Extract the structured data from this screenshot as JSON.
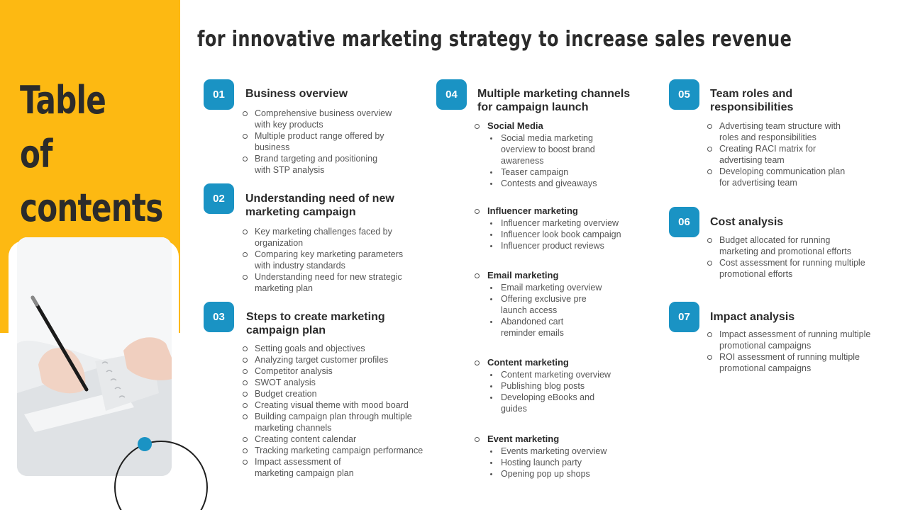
{
  "left_panel": {
    "title_line1": "Table of",
    "title_line2": "contents"
  },
  "main_title": "for innovative marketing strategy to increase sales revenue",
  "sections": {
    "s1": {
      "number": "01",
      "title": "Business overview",
      "items": [
        [
          "Comprehensive  business overview",
          "with key products"
        ],
        [
          "Multiple product range offered  by",
          "business"
        ],
        [
          "Brand targeting and positioning",
          "with STP analysis"
        ]
      ]
    },
    "s2": {
      "number": "02",
      "title_line1": "Understanding need of new",
      "title_line2": "marketing campaign",
      "items": [
        [
          "Key marketing challenges faced by",
          "organization"
        ],
        [
          "Comparing  key marketing parameters",
          "with industry standards"
        ],
        [
          "Understanding  need for new strategic",
          "marketing plan"
        ]
      ]
    },
    "s3": {
      "number": "03",
      "title_line1": "Steps to create marketing",
      "title_line2": "campaign plan",
      "items": [
        [
          "Setting goals and objectives"
        ],
        [
          "Analyzing target customer profiles"
        ],
        [
          "Competitor analysis"
        ],
        [
          "SWOT analysis"
        ],
        [
          "Budget creation"
        ],
        [
          "Creating visual theme with mood board"
        ],
        [
          "Building campaign plan through multiple",
          "marketing channels"
        ],
        [
          "Creating content calendar"
        ],
        [
          "Tracking marketing campaign performance"
        ],
        [
          "Impact assessment of",
          "marketing campaign plan"
        ]
      ]
    },
    "s4": {
      "number": "04",
      "title_line1": "Multiple marketing channels",
      "title_line2": "for campaign launch",
      "social": {
        "heading": "Social Media",
        "items": [
          [
            "Social media marketing",
            "overview  to boost brand",
            "awareness"
          ],
          [
            "Teaser campaign"
          ],
          [
            "Contests and giveaways"
          ]
        ]
      },
      "influencer": {
        "heading": "Influencer marketing",
        "items": [
          [
            "Influencer  marketing overview"
          ],
          [
            "Influencer  look book campaign"
          ],
          [
            "Influencer  product reviews"
          ]
        ]
      },
      "email": {
        "heading": "Email marketing",
        "items": [
          [
            "Email marketing overview"
          ],
          [
            "Offering  exclusive pre",
            "launch access"
          ],
          [
            "Abandoned cart",
            "reminder emails"
          ]
        ]
      },
      "content": {
        "heading": "Content marketing",
        "items": [
          [
            "Content marketing overview"
          ],
          [
            "Publishing blog posts"
          ],
          [
            "Developing  eBooks and",
            "guides"
          ]
        ]
      },
      "event": {
        "heading": "Event marketing",
        "items": [
          [
            "Events marketing overview"
          ],
          [
            "Hosting launch party"
          ],
          [
            "Opening pop up shops"
          ]
        ]
      }
    },
    "s5": {
      "number": "05",
      "title_line1": "Team roles and",
      "title_line2": "responsibilities",
      "items": [
        [
          "Advertising team structure with",
          "roles and responsibilities"
        ],
        [
          "Creating RACI matrix for",
          "advertising team"
        ],
        [
          "Developing  communication plan",
          "for advertising  team"
        ]
      ]
    },
    "s6": {
      "number": "06",
      "title": "Cost analysis",
      "items": [
        [
          "Budget allocated for running",
          "marketing and promotional efforts"
        ],
        [
          "Cost assessment for running multiple",
          "promotional efforts"
        ]
      ]
    },
    "s7": {
      "number": "07",
      "title": "Impact analysis",
      "items": [
        [
          "Impact assessment of running multiple",
          "promotional campaigns"
        ],
        [
          "ROI assessment of running multiple",
          "promotional campaigns"
        ]
      ]
    }
  },
  "colors": {
    "accent_yellow": "#fdb912",
    "badge_blue": "#1a93c4",
    "heading_dark": "#2b2b2b",
    "body_gray": "#555555"
  }
}
